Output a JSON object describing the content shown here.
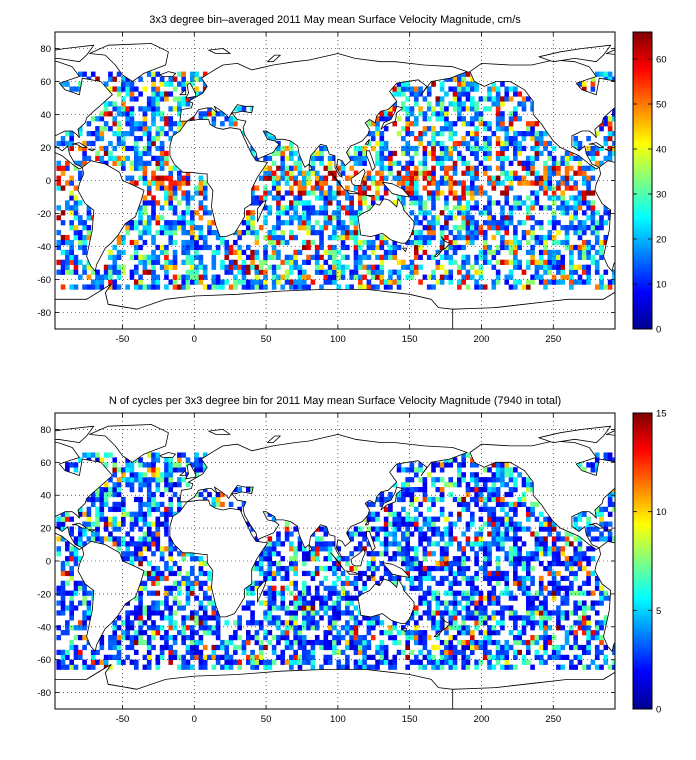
{
  "panels": [
    {
      "title": "3x3 degree bin–averaged 2011 May mean Surface Velocity Magnitude, cm/s",
      "xticks": [
        -50,
        0,
        50,
        100,
        150,
        200,
        250
      ],
      "yticks": [
        80,
        60,
        40,
        20,
        0,
        -20,
        -40,
        -60,
        -80
      ],
      "cticks": [
        60,
        50,
        40,
        30,
        20,
        10,
        0
      ],
      "clim": [
        0,
        66
      ]
    },
    {
      "title": "N of cycles per 3x3 degree bin for 2011 May mean Surface Velocity Magnitude (7940 in total)",
      "xticks": [
        -50,
        0,
        50,
        100,
        150,
        200,
        250
      ],
      "yticks": [
        80,
        60,
        40,
        20,
        0,
        -20,
        -40,
        -60,
        -80
      ],
      "cticks": [
        15,
        10,
        5,
        0
      ],
      "clim": [
        0,
        15
      ]
    }
  ],
  "chart_data": [
    {
      "type": "heatmap",
      "title": "3x3 degree bin–averaged 2011 May mean Surface Velocity Magnitude, cm/s",
      "xlim": [
        -97,
        293
      ],
      "ylim": [
        -90,
        90
      ],
      "bin_size_deg": 3,
      "colorbar": {
        "colormap": "jet",
        "range": [
          0,
          66
        ],
        "ticks": [
          0,
          10,
          20,
          30,
          40,
          50,
          60
        ]
      },
      "grid": true
    },
    {
      "type": "heatmap",
      "title": "N of cycles per 3x3 degree bin for 2011 May mean Surface Velocity Magnitude (7940 in total)",
      "xlim": [
        -97,
        293
      ],
      "ylim": [
        -90,
        90
      ],
      "bin_size_deg": 3,
      "colorbar": {
        "colormap": "jet",
        "range": [
          0,
          15
        ],
        "ticks": [
          0,
          5,
          10,
          15
        ]
      },
      "total_cycles": 7940,
      "grid": true
    }
  ]
}
